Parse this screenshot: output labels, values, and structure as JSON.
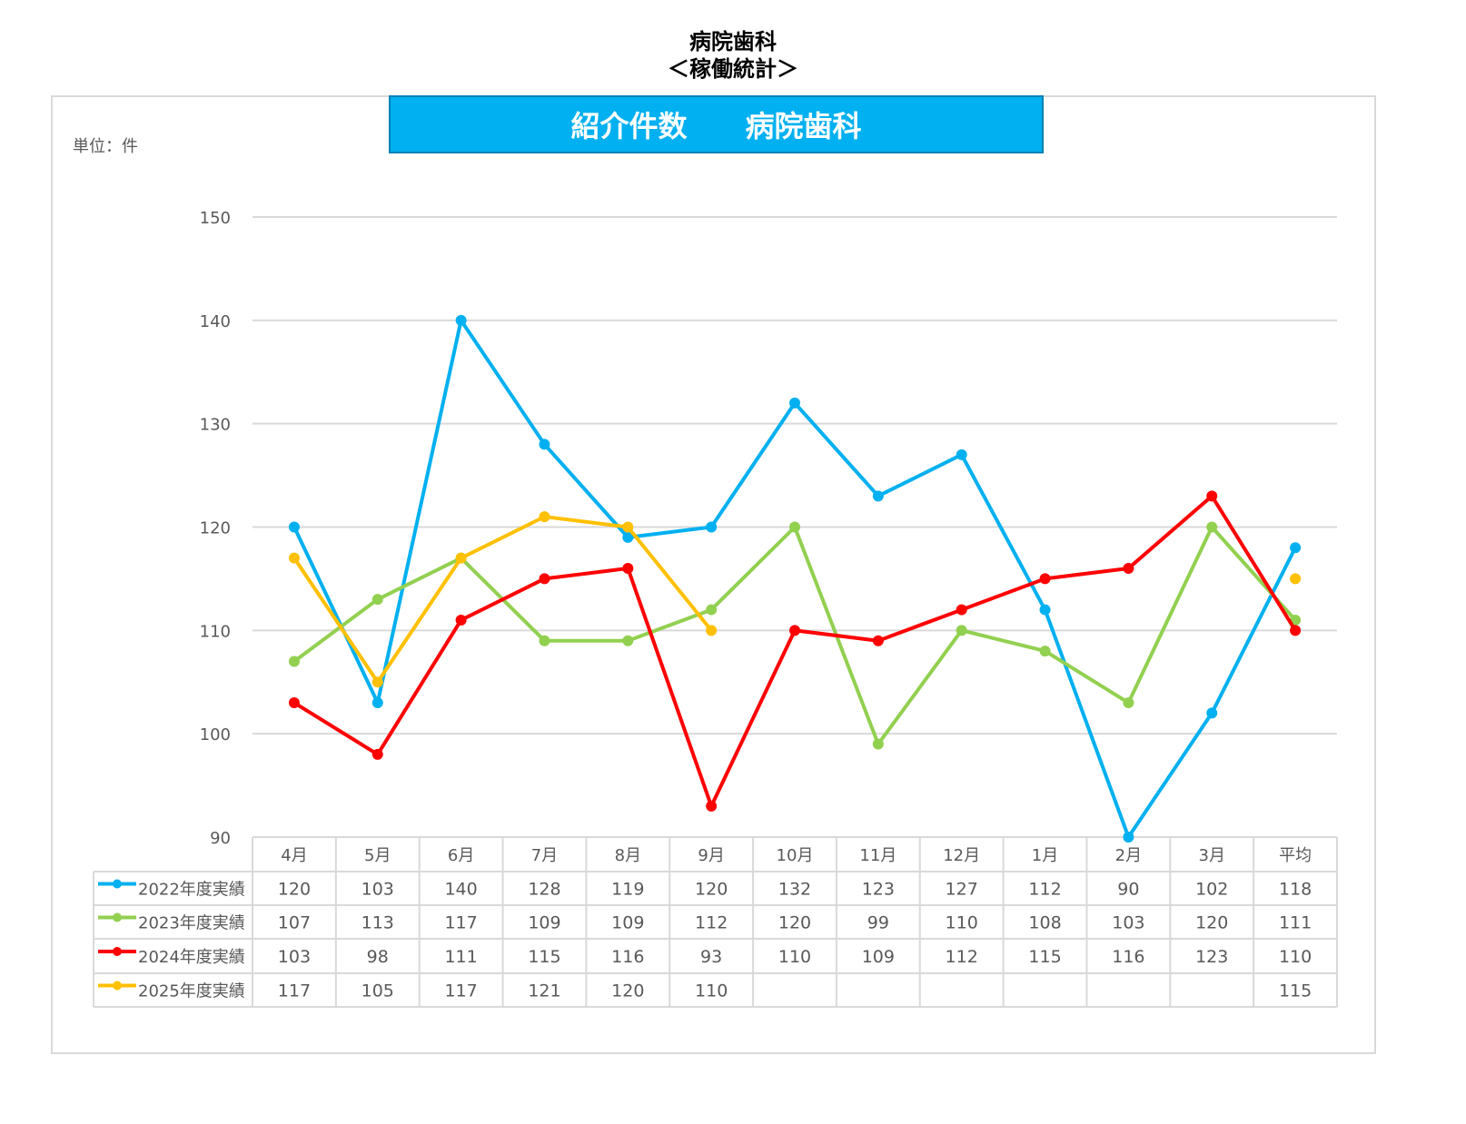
{
  "header": {
    "title_line1": "病院歯科",
    "title_line2": "＜稼働統計＞"
  },
  "chart_data": {
    "type": "line",
    "title": "紹介件数　　病院歯科",
    "unit_label": "単位：件",
    "categories": [
      "4月",
      "5月",
      "6月",
      "7月",
      "8月",
      "9月",
      "10月",
      "11月",
      "12月",
      "1月",
      "2月",
      "3月",
      "平均"
    ],
    "ylim": [
      90,
      150
    ],
    "yticks": [
      90,
      100,
      110,
      120,
      130,
      140,
      150
    ],
    "grid": true,
    "legend_placement": "data-table-left",
    "series": [
      {
        "name": "2022年度実績",
        "color": "#00b0f0",
        "values": [
          120,
          103,
          140,
          128,
          119,
          120,
          132,
          123,
          127,
          112,
          90,
          102,
          118
        ]
      },
      {
        "name": "2023年度実績",
        "color": "#92d050",
        "values": [
          107,
          113,
          117,
          109,
          109,
          112,
          120,
          99,
          110,
          108,
          103,
          120,
          111
        ]
      },
      {
        "name": "2024年度実績",
        "color": "#ff0000",
        "values": [
          103,
          98,
          111,
          115,
          116,
          93,
          110,
          109,
          112,
          115,
          116,
          123,
          110
        ]
      },
      {
        "name": "2025年度実績",
        "color": "#ffc000",
        "values": [
          117,
          105,
          117,
          121,
          120,
          110,
          null,
          null,
          null,
          null,
          null,
          null,
          115
        ]
      }
    ]
  }
}
